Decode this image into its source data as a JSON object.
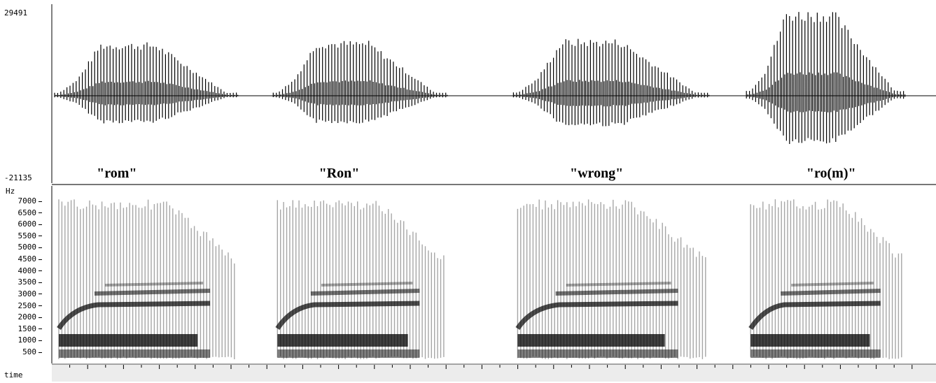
{
  "waveform": {
    "y_max_label": "29491",
    "y_min_label": "-21135",
    "words": [
      {
        "label": "\"rom\"",
        "center_time": 0.18
      },
      {
        "label": "\"Ron\"",
        "center_time": 0.8
      },
      {
        "label": "\"wrong\"",
        "center_time": 1.5
      },
      {
        "label": "\"ro(m)\"",
        "center_time": 2.16
      }
    ]
  },
  "spectrogram": {
    "unit_label": "Hz",
    "freq_ticks": [
      7000,
      6500,
      6000,
      5500,
      5000,
      4500,
      4000,
      3500,
      3000,
      2500,
      2000,
      1500,
      1000,
      500
    ],
    "freq_ticks_text": [
      "7000",
      "6500",
      "6000",
      "5500",
      "5000",
      "4500",
      "4000",
      "3500",
      "3000",
      "2500",
      "2000",
      "1500",
      "1000",
      "500"
    ]
  },
  "time_axis": {
    "label": "time",
    "ticks": [
      "0.1",
      "0.2",
      "0.3",
      "0.4",
      "0.5",
      "0.6",
      "0.7",
      "0.8",
      "0.9",
      "1.0",
      "1.1",
      "1.2",
      "1.3",
      "1.4",
      "1.5",
      "1.6",
      "1.7",
      "1.8",
      "1.9",
      "2.0",
      "2.1",
      "2.2",
      "2.3",
      "2.4"
    ],
    "range": [
      0.0,
      2.45
    ]
  },
  "segments": [
    {
      "start": 0.0,
      "end": 0.52,
      "peak": 0.62,
      "trough": 0.45
    },
    {
      "start": 0.61,
      "end": 1.1,
      "peak": 0.64,
      "trough": 0.45
    },
    {
      "start": 1.28,
      "end": 1.83,
      "peak": 0.66,
      "trough": 0.5
    },
    {
      "start": 1.93,
      "end": 2.38,
      "peak": 1.0,
      "trough": 0.8
    }
  ]
}
